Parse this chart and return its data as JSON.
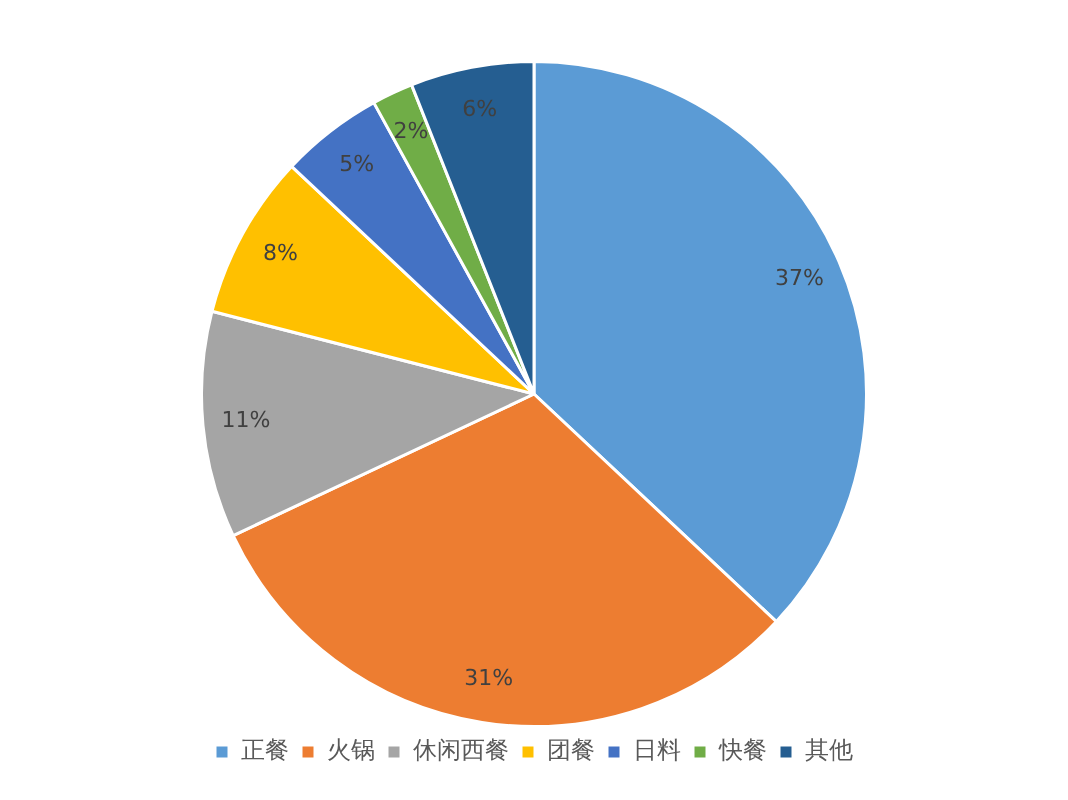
{
  "chart_data": {
    "type": "pie",
    "categories": [
      "正餐",
      "火锅",
      "休闲西餐",
      "团餐",
      "日料",
      "快餐",
      "其他"
    ],
    "values": [
      37,
      31,
      11,
      8,
      5,
      2,
      6
    ],
    "colors": [
      "#5b9bd5",
      "#ed7d31",
      "#a5a5a5",
      "#ffc000",
      "#4472c4",
      "#70ad47",
      "#255e91"
    ],
    "value_labels": [
      "37%",
      "31%",
      "11%",
      "8%",
      "5%",
      "2%",
      "6%"
    ],
    "legend": "bottom"
  }
}
